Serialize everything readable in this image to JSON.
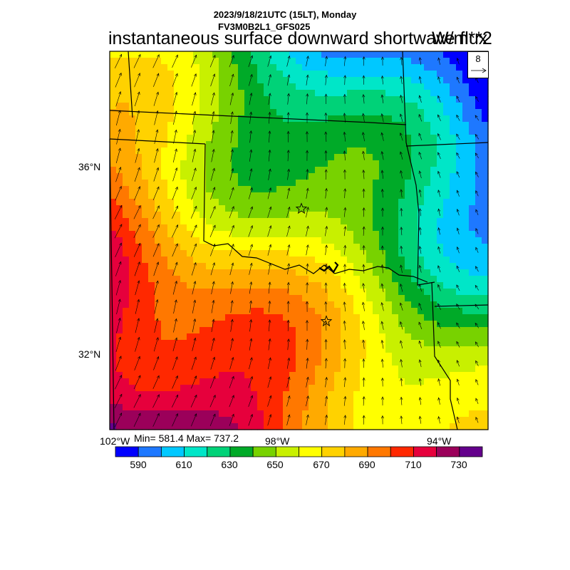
{
  "header": {
    "datetime": "2023/9/18/21UTC (15LT), Monday",
    "model": "FV3M0B2L1_GFS025",
    "title": "instantaneous surface downward shortwave flux",
    "units": "W/m**2"
  },
  "map": {
    "lat_labels": [
      "36°N",
      "32°N"
    ],
    "lon_labels": [
      "102°W",
      "98°W",
      "94°W"
    ],
    "stats": "Min= 581.4 Max= 737.2",
    "ref_vector": "8",
    "markers": [
      "star",
      "star"
    ],
    "field_min": 581.4,
    "field_max": 737.2
  },
  "colorbar": {
    "colors": [
      "#0000ff",
      "#1e78ff",
      "#00c8ff",
      "#00e6c8",
      "#00d278",
      "#00aa28",
      "#78d200",
      "#c8f000",
      "#ffff00",
      "#ffd200",
      "#ffaa00",
      "#ff7800",
      "#ff2800",
      "#e6003c",
      "#9b005a",
      "#64008c"
    ],
    "labels": [
      "590",
      "610",
      "630",
      "650",
      "670",
      "690",
      "710",
      "730"
    ]
  }
}
